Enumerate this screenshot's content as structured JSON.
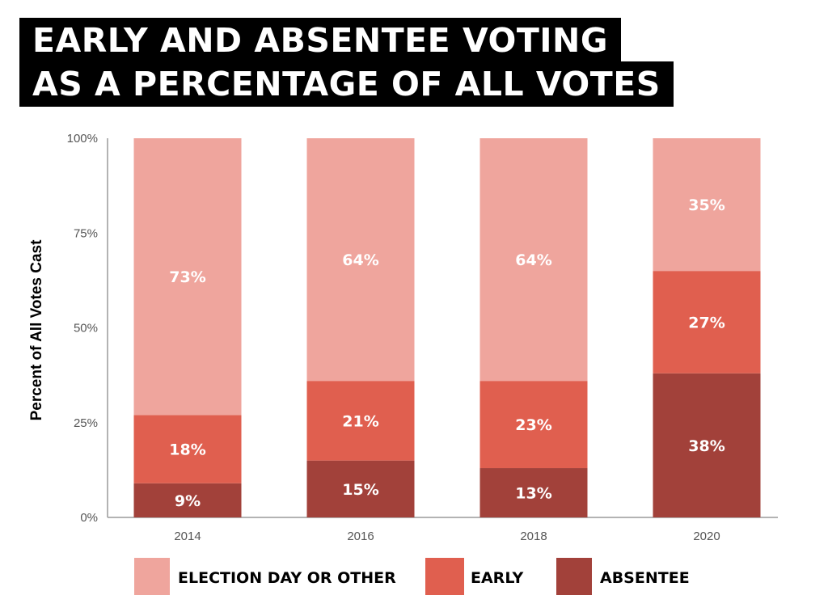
{
  "header": {
    "title_line1": "EARLY AND ABSENTEE VOTING",
    "title_line2": "AS A PERCENTAGE OF ALL VOTES"
  },
  "chart_data": {
    "type": "bar",
    "stacked": true,
    "title": "EARLY AND ABSENTEE VOTING AS A PERCENTAGE OF ALL VOTES",
    "xlabel": "",
    "ylabel": "Percent of All Votes Cast",
    "ylim": [
      0,
      100
    ],
    "yticks": [
      0,
      25,
      50,
      75,
      100
    ],
    "ytick_labels": [
      "0%",
      "25%",
      "50%",
      "75%",
      "100%"
    ],
    "categories": [
      "2014",
      "2016",
      "2018",
      "2020"
    ],
    "series": [
      {
        "name": "ABSENTEE",
        "color": "#a2413a",
        "values": [
          9,
          15,
          13,
          38
        ],
        "labels": [
          "9%",
          "15%",
          "13%",
          "38%"
        ]
      },
      {
        "name": "EARLY",
        "color": "#e05f4f",
        "values": [
          18,
          21,
          23,
          27
        ],
        "labels": [
          "18%",
          "21%",
          "23%",
          "27%"
        ]
      },
      {
        "name": "ELECTION DAY OR OTHER",
        "color": "#efa59d",
        "values": [
          73,
          64,
          64,
          35
        ],
        "labels": [
          "73%",
          "64%",
          "64%",
          "35%"
        ]
      }
    ],
    "legend": {
      "placement": "bottom",
      "order": [
        "ELECTION DAY OR OTHER",
        "EARLY",
        "ABSENTEE"
      ]
    }
  }
}
